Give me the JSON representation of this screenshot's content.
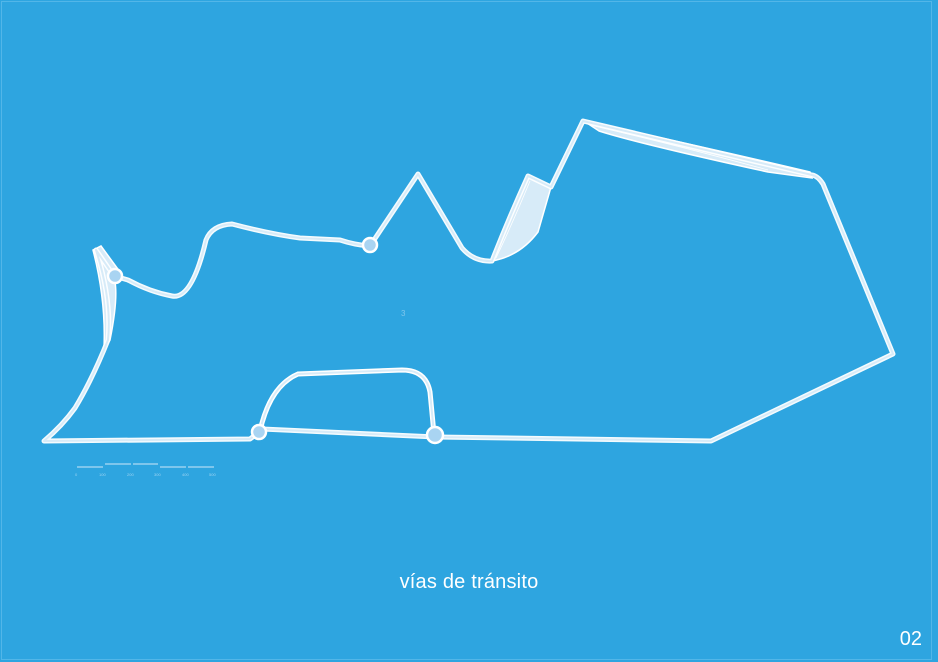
{
  "diagram": {
    "caption": "vías de tránsito",
    "page_number": "02",
    "center_mark": "3",
    "colors": {
      "background": "#2ea5e0",
      "road_outline": "#ffffff",
      "road_fill": "#d7ebf8",
      "node": "#a9d4f2"
    },
    "scale_bar": {
      "labels": [
        "0",
        "100",
        "200",
        "300",
        "400",
        "500"
      ]
    }
  }
}
